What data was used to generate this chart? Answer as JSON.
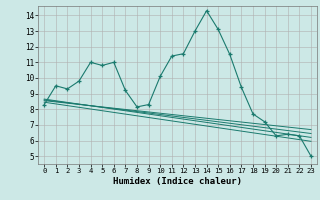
{
  "xlabel": "Humidex (Indice chaleur)",
  "bg_color": "#cce8e6",
  "grid_color": "#b0b0b0",
  "line_color": "#1a7a6e",
  "xlim": [
    -0.5,
    23.5
  ],
  "ylim": [
    4.5,
    14.6
  ],
  "xticks": [
    0,
    1,
    2,
    3,
    4,
    5,
    6,
    7,
    8,
    9,
    10,
    11,
    12,
    13,
    14,
    15,
    16,
    17,
    18,
    19,
    20,
    21,
    22,
    23
  ],
  "yticks": [
    5,
    6,
    7,
    8,
    9,
    10,
    11,
    12,
    13,
    14
  ],
  "main_x": [
    0,
    1,
    2,
    3,
    4,
    5,
    6,
    7,
    8,
    9,
    10,
    11,
    12,
    13,
    14,
    15,
    16,
    17,
    18,
    19,
    20,
    21,
    22,
    23
  ],
  "main_y": [
    8.3,
    9.5,
    9.3,
    9.8,
    11.0,
    10.8,
    11.0,
    9.2,
    8.15,
    8.3,
    10.1,
    11.4,
    11.55,
    13.0,
    14.3,
    13.1,
    11.5,
    9.4,
    7.7,
    7.2,
    6.3,
    6.4,
    6.3,
    5.0
  ],
  "reg_lines": [
    {
      "x": [
        0,
        23
      ],
      "y": [
        8.55,
        6.7
      ]
    },
    {
      "x": [
        0,
        23
      ],
      "y": [
        8.6,
        6.45
      ]
    },
    {
      "x": [
        0,
        23
      ],
      "y": [
        8.65,
        6.2
      ]
    },
    {
      "x": [
        0,
        23
      ],
      "y": [
        8.45,
        5.95
      ]
    }
  ]
}
